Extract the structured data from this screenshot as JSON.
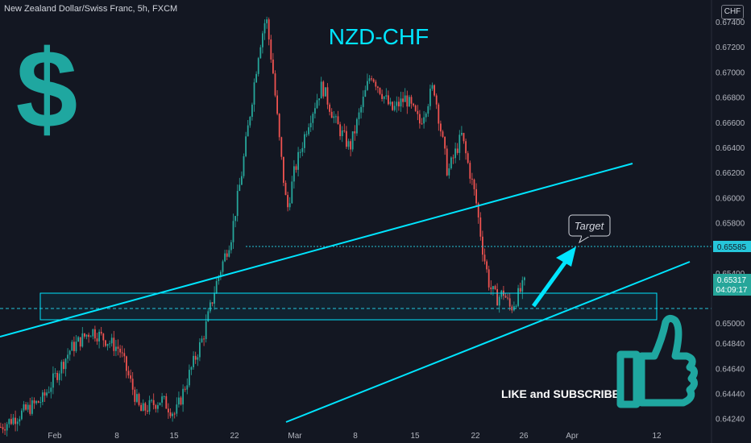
{
  "header": {
    "symbol": "New Zealand Dollar/Swiss Franc, 5h, FXCM",
    "currency_button": "CHF"
  },
  "annotations": {
    "title": "NZD-CHF",
    "target_label": "Target",
    "cta": "LIKE and SUBSCRIBE",
    "dollar_sign": "$"
  },
  "colors": {
    "background": "#131722",
    "up": "#26a69a",
    "down": "#ef5350",
    "accent": "#00e5ff",
    "icon": "#1fa7a0"
  },
  "chart_data": {
    "type": "candlestick",
    "title": "",
    "x_ticks": [
      "Feb",
      "8",
      "15",
      "22",
      "Mar",
      "8",
      "15",
      "22",
      "26",
      "Apr",
      "12"
    ],
    "y_ticks": [
      0.6424,
      0.6444,
      0.6464,
      0.6484,
      0.65,
      0.654,
      0.658,
      0.66,
      0.662,
      0.664,
      0.666,
      0.668,
      0.67,
      0.672,
      0.674
    ],
    "ylim": [
      0.6418,
      0.6758
    ],
    "grid": false,
    "last_price": {
      "value": 0.65317,
      "label": "0.65317",
      "countdown": "04:09:17"
    },
    "level_line": {
      "value": 0.65585,
      "label": "0.65585"
    },
    "support_level": 0.6508,
    "price_path": [
      [
        0,
        0.6418
      ],
      [
        0.06,
        0.644
      ],
      [
        0.1,
        0.648
      ],
      [
        0.13,
        0.6495
      ],
      [
        0.17,
        0.648
      ],
      [
        0.2,
        0.643
      ],
      [
        0.23,
        0.644
      ],
      [
        0.25,
        0.6428
      ],
      [
        0.27,
        0.646
      ],
      [
        0.29,
        0.649
      ],
      [
        0.31,
        0.6535
      ],
      [
        0.33,
        0.657
      ],
      [
        0.345,
        0.662
      ],
      [
        0.36,
        0.668
      ],
      [
        0.37,
        0.672
      ],
      [
        0.38,
        0.6745
      ],
      [
        0.39,
        0.67
      ],
      [
        0.4,
        0.664
      ],
      [
        0.41,
        0.659
      ],
      [
        0.42,
        0.662
      ],
      [
        0.44,
        0.666
      ],
      [
        0.46,
        0.669
      ],
      [
        0.48,
        0.666
      ],
      [
        0.5,
        0.664
      ],
      [
        0.53,
        0.67
      ],
      [
        0.56,
        0.667
      ],
      [
        0.58,
        0.668
      ],
      [
        0.6,
        0.666
      ],
      [
        0.62,
        0.669
      ],
      [
        0.64,
        0.662
      ],
      [
        0.66,
        0.665
      ],
      [
        0.68,
        0.66
      ],
      [
        0.69,
        0.656
      ],
      [
        0.7,
        0.653
      ],
      [
        0.71,
        0.652
      ],
      [
        0.72,
        0.6525
      ],
      [
        0.73,
        0.6512
      ],
      [
        0.74,
        0.6522
      ],
      [
        0.75,
        0.6532
      ]
    ]
  }
}
